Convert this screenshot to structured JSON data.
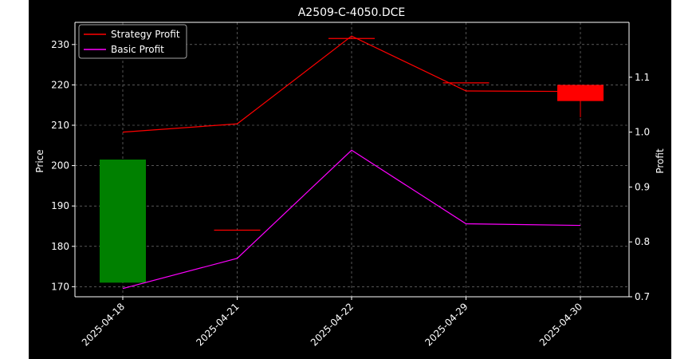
{
  "chart_data": {
    "type": "candlestick+line",
    "title": "A2509-C-4050.DCE",
    "ylabel_left": "Price",
    "ylabel_right": "Profit",
    "ylim_left": [
      167.5,
      235.5
    ],
    "ylim_right": [
      0.7,
      1.2
    ],
    "left_ticks": [
      170,
      180,
      190,
      200,
      210,
      220,
      230
    ],
    "right_ticks": [
      0.7,
      0.8,
      0.9,
      1.0,
      1.1
    ],
    "right_tick_labels": [
      "0.7",
      "0.8",
      "0.9",
      "1.0",
      "1.1"
    ],
    "categories": [
      "2025-04-18",
      "2025-04-21",
      "2025-04-22",
      "2025-04-29",
      "2025-04-30"
    ],
    "grid": true,
    "legend_position": "top-left",
    "candles": [
      {
        "date": "2025-04-18",
        "open": 171.0,
        "close": 201.5,
        "high": 201.5,
        "low": 171.0,
        "color": "#008000"
      },
      {
        "date": "2025-04-21",
        "open": 184.0,
        "close": 184.0,
        "high": 184.0,
        "low": 184.0,
        "color": "#ff0000"
      },
      {
        "date": "2025-04-22",
        "open": 231.5,
        "close": 231.5,
        "high": 231.5,
        "low": 231.5,
        "color": "#ff0000"
      },
      {
        "date": "2025-04-29",
        "open": 220.5,
        "close": 220.5,
        "high": 220.5,
        "low": 220.5,
        "color": "#ff0000"
      },
      {
        "date": "2025-04-30",
        "open": 220.0,
        "close": 216.0,
        "high": 220.0,
        "low": 212.0,
        "color": "#ff0000"
      }
    ],
    "series": [
      {
        "name": "Strategy Profit",
        "color": "#ff0000",
        "values": [
          1.0,
          1.015,
          1.175,
          1.075,
          1.074
        ]
      },
      {
        "name": "Basic Profit",
        "color": "#ff00ff",
        "values": [
          0.715,
          0.77,
          0.967,
          0.833,
          0.83
        ]
      }
    ]
  }
}
